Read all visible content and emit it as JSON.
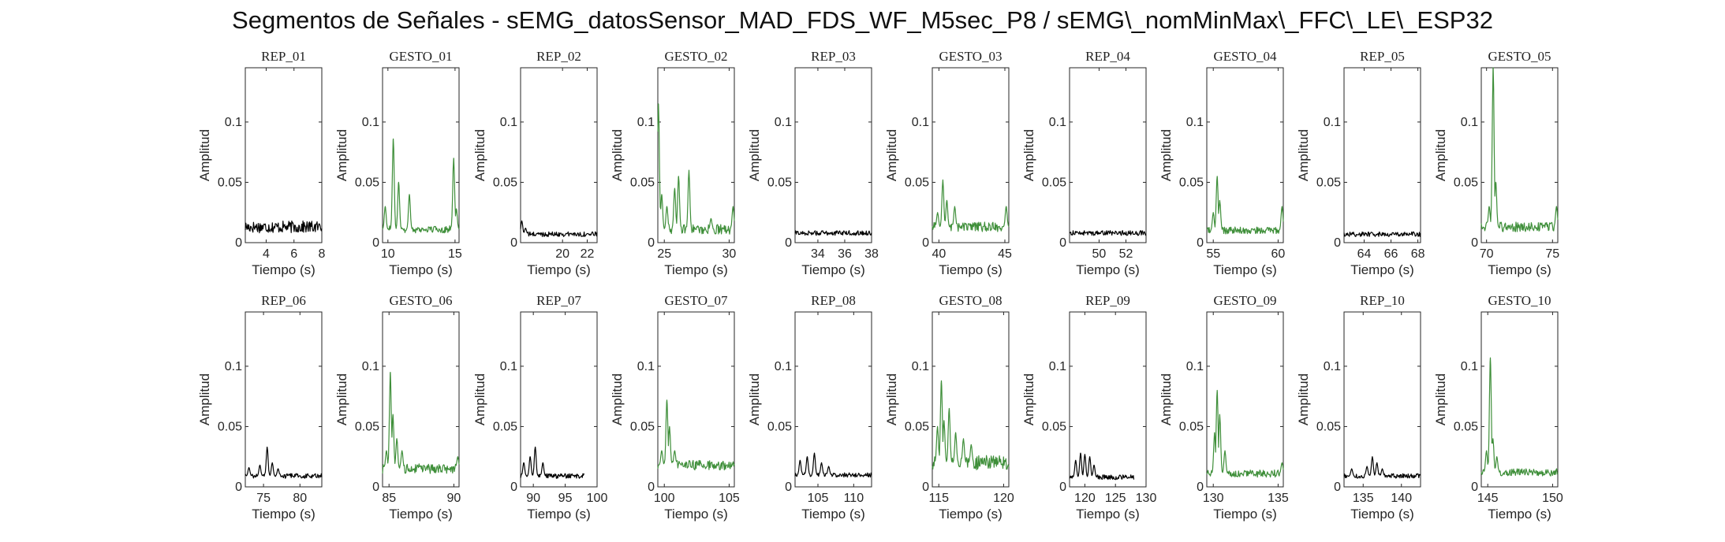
{
  "figure_title": "Segmentos de Señales - sEMG_datosSensor_MAD_FDS_WF_M5sec_P8 / sEMG\\_nomMinMax\\_FFC\\_LE\\_ESP32",
  "colors": {
    "rep": "#000000",
    "gesto": "#3f8f3a",
    "axes": "#262626"
  },
  "chart_data": [
    {
      "type": "line",
      "title": "REP_01",
      "xlabel": "Tiempo (s)",
      "ylabel": "Amplitud",
      "xlim": [
        2.5,
        8
      ],
      "ylim": [
        0,
        0.145
      ],
      "xticks": [
        4,
        6,
        8
      ],
      "yticks": [
        0,
        0.05,
        0.1
      ],
      "ytick_labels": [
        "0",
        "0.05",
        "0.1"
      ],
      "series": [
        {
          "style": "rep",
          "profile": {
            "base": 0.013,
            "noise": 0.005,
            "spikes": []
          }
        }
      ]
    },
    {
      "type": "line",
      "title": "GESTO_01",
      "xlabel": "Tiempo (s)",
      "ylabel": "Amplitud",
      "xlim": [
        9.6,
        15.3
      ],
      "ylim": [
        0,
        0.145
      ],
      "xticks": [
        10,
        15
      ],
      "yticks": [
        0,
        0.05,
        0.1
      ],
      "ytick_labels": [
        "0",
        "0.05",
        "0.1"
      ],
      "series": [
        {
          "style": "gesto",
          "profile": {
            "base": 0.011,
            "noise": 0.003,
            "spikes": [
              [
                9.8,
                0.03
              ],
              [
                10.4,
                0.086
              ],
              [
                10.8,
                0.05
              ],
              [
                11.6,
                0.04
              ],
              [
                14.9,
                0.07
              ],
              [
                15.1,
                0.028
              ]
            ]
          }
        }
      ]
    },
    {
      "type": "line",
      "title": "REP_02",
      "xlabel": "Tiempo (s)",
      "ylabel": "Amplitud",
      "xlim": [
        16.6,
        22.8
      ],
      "ylim": [
        0,
        0.145
      ],
      "xticks": [
        20,
        22
      ],
      "yticks": [
        0,
        0.05,
        0.1
      ],
      "ytick_labels": [
        "0",
        "0.05",
        "0.1"
      ],
      "series": [
        {
          "style": "rep",
          "profile": {
            "base": 0.007,
            "noise": 0.002,
            "spikes": [
              [
                16.7,
                0.018
              ],
              [
                17.0,
                0.012
              ]
            ]
          }
        }
      ]
    },
    {
      "type": "line",
      "title": "GESTO_02",
      "xlabel": "Tiempo (s)",
      "ylabel": "Amplitud",
      "xlim": [
        24.5,
        30.4
      ],
      "ylim": [
        0,
        0.145
      ],
      "xticks": [
        25,
        30
      ],
      "yticks": [
        0,
        0.05,
        0.1
      ],
      "ytick_labels": [
        "0",
        "0.05",
        "0.1"
      ],
      "series": [
        {
          "style": "gesto",
          "profile": {
            "base": 0.011,
            "noise": 0.004,
            "spikes": [
              [
                24.55,
                0.115
              ],
              [
                24.8,
                0.04
              ],
              [
                25.2,
                0.03
              ],
              [
                25.8,
                0.045
              ],
              [
                26.1,
                0.055
              ],
              [
                26.9,
                0.06
              ],
              [
                28.6,
                0.02
              ],
              [
                30.3,
                0.03
              ]
            ]
          }
        }
      ]
    },
    {
      "type": "line",
      "title": "REP_03",
      "xlabel": "Tiempo (s)",
      "ylabel": "Amplitud",
      "xlim": [
        32.3,
        38
      ],
      "ylim": [
        0,
        0.145
      ],
      "xticks": [
        34,
        36,
        38
      ],
      "yticks": [
        0,
        0.05,
        0.1
      ],
      "ytick_labels": [
        "0",
        "0.05",
        "0.1"
      ],
      "series": [
        {
          "style": "rep",
          "profile": {
            "base": 0.008,
            "noise": 0.002,
            "spikes": []
          }
        }
      ]
    },
    {
      "type": "line",
      "title": "GESTO_03",
      "xlabel": "Tiempo (s)",
      "ylabel": "Amplitud",
      "xlim": [
        39.5,
        45.3
      ],
      "ylim": [
        0,
        0.145
      ],
      "xticks": [
        40,
        45
      ],
      "yticks": [
        0,
        0.05,
        0.1
      ],
      "ytick_labels": [
        "0",
        "0.05",
        "0.1"
      ],
      "series": [
        {
          "style": "gesto",
          "profile": {
            "base": 0.013,
            "noise": 0.004,
            "spikes": [
              [
                39.9,
                0.025
              ],
              [
                40.3,
                0.052
              ],
              [
                40.6,
                0.035
              ],
              [
                41.2,
                0.03
              ],
              [
                45.1,
                0.03
              ]
            ]
          }
        }
      ]
    },
    {
      "type": "line",
      "title": "REP_04",
      "xlabel": "Tiempo (s)",
      "ylabel": "Amplitud",
      "xlim": [
        47.8,
        53.5
      ],
      "ylim": [
        0,
        0.145
      ],
      "xticks": [
        50,
        52
      ],
      "yticks": [
        0,
        0.05,
        0.1
      ],
      "ytick_labels": [
        "0",
        "0.05",
        "0.1"
      ],
      "series": [
        {
          "style": "rep",
          "profile": {
            "base": 0.008,
            "noise": 0.002,
            "spikes": []
          }
        }
      ]
    },
    {
      "type": "line",
      "title": "GESTO_04",
      "xlabel": "Tiempo (s)",
      "ylabel": "Amplitud",
      "xlim": [
        54.5,
        60.4
      ],
      "ylim": [
        0,
        0.145
      ],
      "xticks": [
        55,
        60
      ],
      "yticks": [
        0,
        0.05,
        0.1
      ],
      "ytick_labels": [
        "0",
        "0.05",
        "0.1"
      ],
      "series": [
        {
          "style": "gesto",
          "profile": {
            "base": 0.01,
            "noise": 0.003,
            "spikes": [
              [
                55.0,
                0.025
              ],
              [
                55.3,
                0.055
              ],
              [
                55.5,
                0.035
              ],
              [
                60.3,
                0.03
              ]
            ]
          }
        }
      ]
    },
    {
      "type": "line",
      "title": "REP_05",
      "xlabel": "Tiempo (s)",
      "ylabel": "Amplitud",
      "xlim": [
        62.5,
        68.2
      ],
      "ylim": [
        0,
        0.145
      ],
      "xticks": [
        64,
        66,
        68
      ],
      "yticks": [
        0,
        0.05,
        0.1
      ],
      "ytick_labels": [
        "0",
        "0.05",
        "0.1"
      ],
      "series": [
        {
          "style": "rep",
          "profile": {
            "base": 0.007,
            "noise": 0.002,
            "spikes": []
          }
        }
      ]
    },
    {
      "type": "line",
      "title": "GESTO_05",
      "xlabel": "Tiempo (s)",
      "ylabel": "Amplitud",
      "xlim": [
        69.6,
        75.4
      ],
      "ylim": [
        0,
        0.145
      ],
      "xticks": [
        70,
        75
      ],
      "yticks": [
        0,
        0.05,
        0.1
      ],
      "ytick_labels": [
        "0",
        "0.05",
        "0.1"
      ],
      "series": [
        {
          "style": "gesto",
          "profile": {
            "base": 0.013,
            "noise": 0.004,
            "spikes": [
              [
                70.2,
                0.03
              ],
              [
                70.5,
                0.145
              ],
              [
                70.7,
                0.05
              ],
              [
                75.3,
                0.03
              ]
            ]
          }
        }
      ]
    },
    {
      "type": "line",
      "title": "REP_06",
      "xlabel": "Tiempo (s)",
      "ylabel": "Amplitud",
      "xlim": [
        72.5,
        83
      ],
      "ylim": [
        0,
        0.145
      ],
      "xticks": [
        75,
        80
      ],
      "yticks": [
        0,
        0.05,
        0.1
      ],
      "ytick_labels": [
        "0",
        "0.05",
        "0.1"
      ],
      "series": [
        {
          "style": "rep",
          "profile": {
            "base": 0.009,
            "noise": 0.002,
            "spikes": [
              [
                73.0,
                0.016
              ],
              [
                74.5,
                0.018
              ],
              [
                75.5,
                0.033
              ],
              [
                76.2,
                0.02
              ],
              [
                77.0,
                0.015
              ]
            ]
          }
        }
      ]
    },
    {
      "type": "line",
      "title": "GESTO_06",
      "xlabel": "Tiempo (s)",
      "ylabel": "Amplitud",
      "xlim": [
        84.5,
        90.4
      ],
      "ylim": [
        0,
        0.145
      ],
      "xticks": [
        85,
        90
      ],
      "yticks": [
        0,
        0.05,
        0.1
      ],
      "ytick_labels": [
        "0",
        "0.05",
        "0.1"
      ],
      "series": [
        {
          "style": "gesto",
          "profile": {
            "base": 0.015,
            "noise": 0.004,
            "spikes": [
              [
                84.8,
                0.03
              ],
              [
                85.1,
                0.095
              ],
              [
                85.3,
                0.06
              ],
              [
                85.6,
                0.04
              ],
              [
                86.0,
                0.03
              ],
              [
                90.3,
                0.025
              ]
            ]
          }
        }
      ]
    },
    {
      "type": "line",
      "title": "REP_07",
      "xlabel": "Tiempo (s)",
      "ylabel": "Amplitud",
      "xlim": [
        88,
        100
      ],
      "ylim": [
        0,
        0.145
      ],
      "xticks": [
        90,
        95,
        100
      ],
      "yticks": [
        0,
        0.05,
        0.1
      ],
      "ytick_labels": [
        "0",
        "0.05",
        "0.1"
      ],
      "series": [
        {
          "style": "rep",
          "profile": {
            "base": 0.009,
            "noise": 0.002,
            "xmax": 98,
            "spikes": [
              [
                88.5,
                0.02
              ],
              [
                89.5,
                0.025
              ],
              [
                90.3,
                0.033
              ],
              [
                91.5,
                0.02
              ]
            ]
          }
        }
      ]
    },
    {
      "type": "line",
      "title": "GESTO_07",
      "xlabel": "Tiempo (s)",
      "ylabel": "Amplitud",
      "xlim": [
        99.5,
        105.4
      ],
      "ylim": [
        0,
        0.145
      ],
      "xticks": [
        100,
        105
      ],
      "yticks": [
        0,
        0.05,
        0.1
      ],
      "ytick_labels": [
        "0",
        "0.05",
        "0.1"
      ],
      "series": [
        {
          "style": "gesto",
          "profile": {
            "base": 0.018,
            "noise": 0.004,
            "spikes": [
              [
                99.8,
                0.03
              ],
              [
                100.2,
                0.072
              ],
              [
                100.4,
                0.05
              ],
              [
                100.8,
                0.03
              ]
            ]
          }
        }
      ]
    },
    {
      "type": "line",
      "title": "REP_08",
      "xlabel": "Tiempo (s)",
      "ylabel": "Amplitud",
      "xlim": [
        101.8,
        112.5
      ],
      "ylim": [
        0,
        0.145
      ],
      "xticks": [
        105,
        110
      ],
      "yticks": [
        0,
        0.05,
        0.1
      ],
      "ytick_labels": [
        "0",
        "0.05",
        "0.1"
      ],
      "series": [
        {
          "style": "rep",
          "profile": {
            "base": 0.01,
            "noise": 0.002,
            "spikes": [
              [
                102.5,
                0.022
              ],
              [
                103.5,
                0.025
              ],
              [
                104.5,
                0.028
              ],
              [
                105.5,
                0.02
              ],
              [
                106.5,
                0.017
              ]
            ]
          }
        }
      ]
    },
    {
      "type": "line",
      "title": "GESTO_08",
      "xlabel": "Tiempo (s)",
      "ylabel": "Amplitud",
      "xlim": [
        114.5,
        120.4
      ],
      "ylim": [
        0,
        0.145
      ],
      "xticks": [
        115,
        120
      ],
      "yticks": [
        0,
        0.05,
        0.1
      ],
      "ytick_labels": [
        "0",
        "0.05",
        "0.1"
      ],
      "series": [
        {
          "style": "gesto",
          "profile": {
            "base": 0.02,
            "noise": 0.006,
            "spikes": [
              [
                114.9,
                0.05
              ],
              [
                115.2,
                0.088
              ],
              [
                115.4,
                0.055
              ],
              [
                115.8,
                0.065
              ],
              [
                116.3,
                0.045
              ],
              [
                116.9,
                0.04
              ],
              [
                117.5,
                0.035
              ]
            ]
          }
        }
      ]
    },
    {
      "type": "line",
      "title": "REP_09",
      "xlabel": "Tiempo (s)",
      "ylabel": "Amplitud",
      "xlim": [
        117.5,
        130
      ],
      "ylim": [
        0,
        0.145
      ],
      "xticks": [
        120,
        125,
        130
      ],
      "yticks": [
        0,
        0.05,
        0.1
      ],
      "ytick_labels": [
        "0",
        "0.05",
        "0.1"
      ],
      "series": [
        {
          "style": "rep",
          "profile": {
            "base": 0.008,
            "noise": 0.002,
            "xmax": 128,
            "spikes": [
              [
                118.5,
                0.022
              ],
              [
                119.3,
                0.028
              ],
              [
                120.0,
                0.027
              ],
              [
                120.8,
                0.025
              ],
              [
                121.5,
                0.018
              ]
            ]
          }
        }
      ]
    },
    {
      "type": "line",
      "title": "GESTO_09",
      "xlabel": "Tiempo (s)",
      "ylabel": "Amplitud",
      "xlim": [
        129.5,
        135.4
      ],
      "ylim": [
        0,
        0.145
      ],
      "xticks": [
        130,
        135
      ],
      "yticks": [
        0,
        0.05,
        0.1
      ],
      "ytick_labels": [
        "0",
        "0.05",
        "0.1"
      ],
      "series": [
        {
          "style": "gesto",
          "profile": {
            "base": 0.011,
            "noise": 0.003,
            "spikes": [
              [
                130.1,
                0.045
              ],
              [
                130.3,
                0.08
              ],
              [
                130.5,
                0.06
              ],
              [
                130.9,
                0.03
              ],
              [
                135.3,
                0.02
              ]
            ]
          }
        }
      ]
    },
    {
      "type": "line",
      "title": "REP_10",
      "xlabel": "Tiempo (s)",
      "ylabel": "Amplitud",
      "xlim": [
        132.5,
        142.5
      ],
      "ylim": [
        0,
        0.145
      ],
      "xticks": [
        135,
        140
      ],
      "yticks": [
        0,
        0.05,
        0.1
      ],
      "ytick_labels": [
        "0",
        "0.05",
        "0.1"
      ],
      "series": [
        {
          "style": "rep",
          "profile": {
            "base": 0.009,
            "noise": 0.002,
            "spikes": [
              [
                133.5,
                0.015
              ],
              [
                135.5,
                0.017
              ],
              [
                136.2,
                0.025
              ],
              [
                136.8,
                0.02
              ],
              [
                137.5,
                0.015
              ]
            ]
          }
        }
      ]
    },
    {
      "type": "line",
      "title": "GESTO_10",
      "xlabel": "Tiempo (s)",
      "ylabel": "Amplitud",
      "xlim": [
        144.5,
        150.4
      ],
      "ylim": [
        0,
        0.145
      ],
      "xticks": [
        145,
        150
      ],
      "yticks": [
        0,
        0.05,
        0.1
      ],
      "ytick_labels": [
        "0",
        "0.05",
        "0.1"
      ],
      "series": [
        {
          "style": "gesto",
          "profile": {
            "base": 0.012,
            "noise": 0.003,
            "spikes": [
              [
                144.9,
                0.03
              ],
              [
                145.2,
                0.107
              ],
              [
                145.4,
                0.04
              ],
              [
                145.7,
                0.025
              ]
            ]
          }
        }
      ]
    }
  ]
}
